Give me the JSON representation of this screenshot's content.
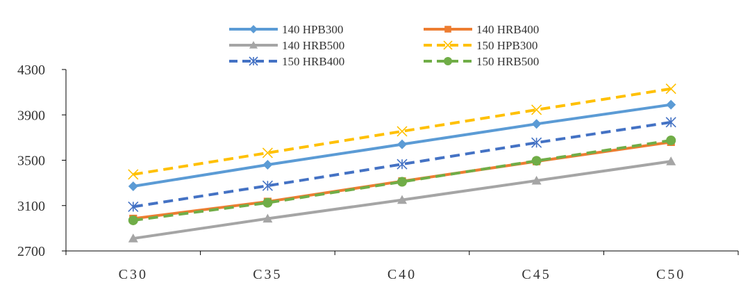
{
  "chart_data": {
    "type": "line",
    "title": "",
    "xlabel": "",
    "ylabel": "",
    "categories": [
      "C30",
      "C35",
      "C40",
      "C45",
      "C50"
    ],
    "ylim": [
      2700,
      4300
    ],
    "yticks": [
      "4300",
      "3900",
      "3500",
      "3100",
      "2700"
    ],
    "grid": false,
    "legend_position": "top",
    "series": [
      {
        "name": "140 HPB300",
        "values": [
          3270,
          3460,
          3640,
          3820,
          3990
        ],
        "color": "#5B9BD5",
        "dash": "solid",
        "marker": "diamond"
      },
      {
        "name": "140 HRB400",
        "values": [
          2985,
          3135,
          3315,
          3490,
          3660
        ],
        "color": "#ED7D31",
        "dash": "solid",
        "marker": "square"
      },
      {
        "name": "140 HRB500",
        "values": [
          2810,
          2985,
          3150,
          3320,
          3490
        ],
        "color": "#A5A5A5",
        "dash": "solid",
        "marker": "triangle"
      },
      {
        "name": "150 HPB300",
        "values": [
          3375,
          3565,
          3755,
          3945,
          4130
        ],
        "color": "#FFC000",
        "dash": "dashed",
        "marker": "x"
      },
      {
        "name": "150 HRB400",
        "values": [
          3090,
          3275,
          3465,
          3655,
          3835
        ],
        "color": "#4472C4",
        "dash": "dashed",
        "marker": "star"
      },
      {
        "name": "150 HRB500",
        "values": [
          2970,
          3125,
          3310,
          3495,
          3675
        ],
        "color": "#70AD47",
        "dash": "dashed",
        "marker": "circle"
      }
    ]
  }
}
